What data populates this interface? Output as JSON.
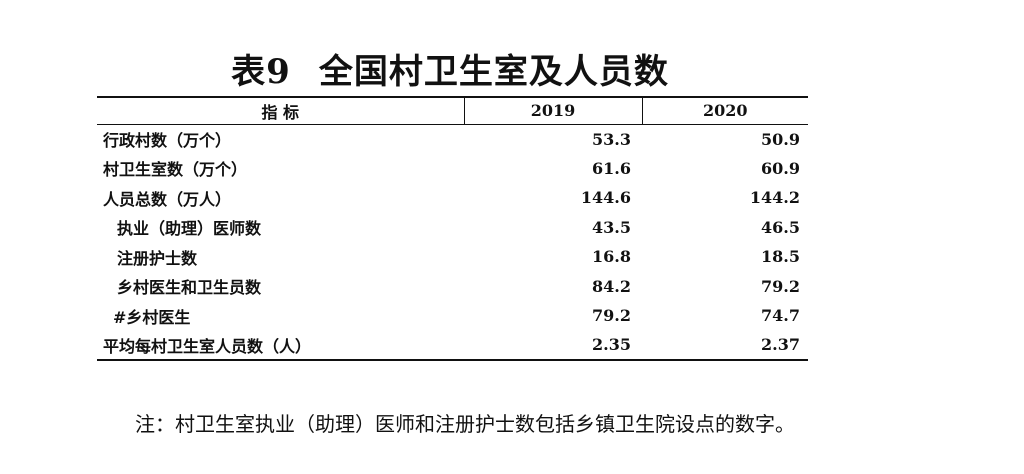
{
  "header": {
    "number": "表9",
    "title": "全国村卫生室及人员数"
  },
  "table": {
    "columns": [
      "指 标",
      "2019",
      "2020"
    ],
    "rows": [
      [
        "行政村数（万个）",
        "53.3",
        "50.9"
      ],
      [
        "村卫生室数（万个）",
        "61.6",
        "60.9"
      ],
      [
        "人员总数（万人）",
        "144.6",
        "144.2"
      ],
      [
        "执业（助理）医师数",
        "43.5",
        "46.5"
      ],
      [
        "注册护士数",
        "16.8",
        "18.5"
      ],
      [
        "乡村医生和卫生员数",
        "84.2",
        "79.2"
      ],
      [
        "#乡村医生",
        "79.2",
        "74.7"
      ],
      [
        "平均每村卫生室人员数（人）",
        "2.35",
        "2.37"
      ]
    ]
  },
  "note": "注：村卫生室执业（助理）医师和注册护士数包括乡镇卫生院设点的数字。"
}
